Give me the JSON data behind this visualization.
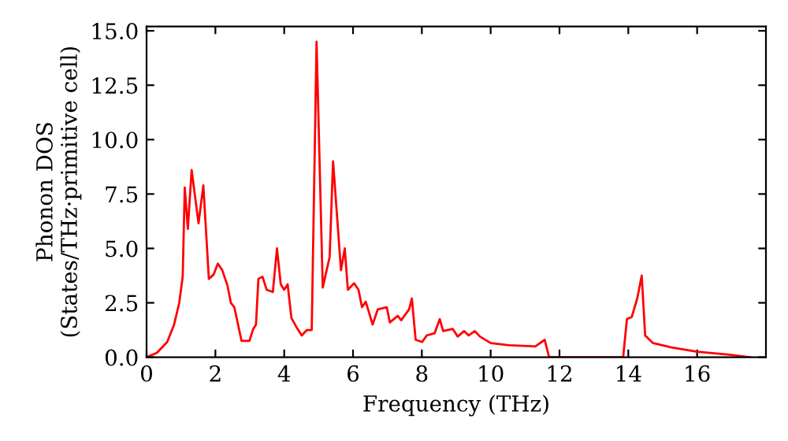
{
  "chart_data": {
    "type": "line",
    "xlabel": "Frequency (THz)",
    "ylabel": "Phonon DOS\n(States/THz·primitive cell)",
    "xlim": [
      0,
      18
    ],
    "ylim": [
      0,
      15.2
    ],
    "xticks": [
      0,
      2,
      4,
      6,
      8,
      10,
      12,
      14,
      16
    ],
    "yticks": [
      {
        "value": 0,
        "label": "0.0"
      },
      {
        "value": 2.5,
        "label": "2.5"
      },
      {
        "value": 5,
        "label": "5.0"
      },
      {
        "value": 7.5,
        "label": "7.5"
      },
      {
        "value": 10,
        "label": "10.0"
      },
      {
        "value": 12.5,
        "label": "12.5"
      },
      {
        "value": 15,
        "label": "15.0"
      }
    ],
    "marker": "none",
    "line_style": "solid",
    "series": [
      {
        "color": "#ff0000",
        "x": [
          0,
          0.3,
          0.6,
          0.8,
          0.95,
          1.05,
          1.11,
          1.2,
          1.31,
          1.51,
          1.65,
          1.81,
          1.95,
          2.07,
          2.2,
          2.35,
          2.45,
          2.55,
          2.76,
          2.99,
          3.1,
          3.18,
          3.25,
          3.37,
          3.49,
          3.67,
          3.79,
          3.9,
          4.0,
          4.1,
          4.21,
          4.35,
          4.51,
          4.66,
          4.8,
          4.94,
          5.12,
          5.32,
          5.42,
          5.65,
          5.76,
          5.85,
          6.03,
          6.16,
          6.26,
          6.37,
          6.57,
          6.72,
          6.98,
          7.07,
          7.3,
          7.4,
          7.63,
          7.71,
          7.82,
          8.01,
          8.14,
          8.37,
          8.52,
          8.62,
          8.9,
          9.04,
          9.23,
          9.36,
          9.54,
          9.69,
          10.0,
          10.53,
          11.3,
          11.57,
          11.7,
          13.85,
          13.96,
          14.1,
          14.26,
          14.39,
          14.49,
          14.72,
          15.25,
          16.0,
          16.93,
          17.54
        ],
        "values": [
          0,
          0.2,
          0.7,
          1.5,
          2.5,
          3.7,
          7.8,
          5.9,
          8.6,
          6.15,
          7.9,
          3.6,
          3.8,
          4.3,
          4.0,
          3.3,
          2.5,
          2.3,
          0.75,
          0.75,
          1.3,
          1.5,
          3.6,
          3.7,
          3.1,
          3.0,
          5.0,
          3.35,
          3.1,
          3.35,
          1.8,
          1.4,
          1.0,
          1.25,
          1.25,
          14.5,
          3.2,
          4.6,
          9.0,
          4.0,
          5.0,
          3.1,
          3.4,
          3.1,
          2.3,
          2.55,
          1.5,
          2.2,
          2.3,
          1.6,
          1.9,
          1.7,
          2.2,
          2.7,
          0.8,
          0.7,
          1.0,
          1.1,
          1.75,
          1.2,
          1.3,
          0.95,
          1.2,
          1.0,
          1.2,
          0.95,
          0.65,
          0.55,
          0.5,
          0.8,
          0.0,
          0.0,
          1.75,
          1.85,
          2.7,
          3.75,
          1.0,
          0.65,
          0.45,
          0.25,
          0.12,
          0
        ]
      }
    ]
  }
}
